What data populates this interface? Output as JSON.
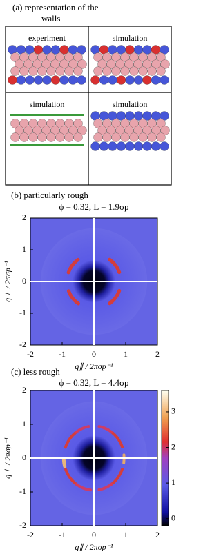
{
  "panel_a": {
    "title": "(a) representation of the",
    "title_line2": "walls",
    "cells": [
      "experiment",
      "simulation",
      "simulation",
      "simulation"
    ]
  },
  "chart_data": [
    {
      "type": "heatmap",
      "title": "(b) particularly rough",
      "subtitle": "ϕ = 0.32, L = 1.9σp",
      "x_label": "q∥ / 2πσp⁻¹",
      "y_label": "q⊥ / 2πσp⁻¹",
      "xlim": [
        -2,
        2
      ],
      "ylim": [
        -2,
        2
      ],
      "xticks": [
        -2,
        -1,
        0,
        1,
        2
      ],
      "yticks": [
        -2,
        -1,
        0,
        1,
        2
      ]
    },
    {
      "type": "heatmap",
      "title": "(c) less rough",
      "subtitle": "ϕ = 0.32, L = 4.4σp",
      "x_label": "q∥ / 2πσp⁻¹",
      "y_label": "q⊥ / 2πσp⁻¹",
      "xlim": [
        -2,
        2
      ],
      "ylim": [
        -2,
        2
      ],
      "xticks": [
        -2,
        -1,
        0,
        1,
        2
      ],
      "yticks": [
        -2,
        -1,
        0,
        1,
        2
      ],
      "colorbar": {
        "clim": [
          -0.2,
          3.6
        ],
        "ticks": [
          0,
          1,
          2,
          3
        ]
      }
    }
  ]
}
